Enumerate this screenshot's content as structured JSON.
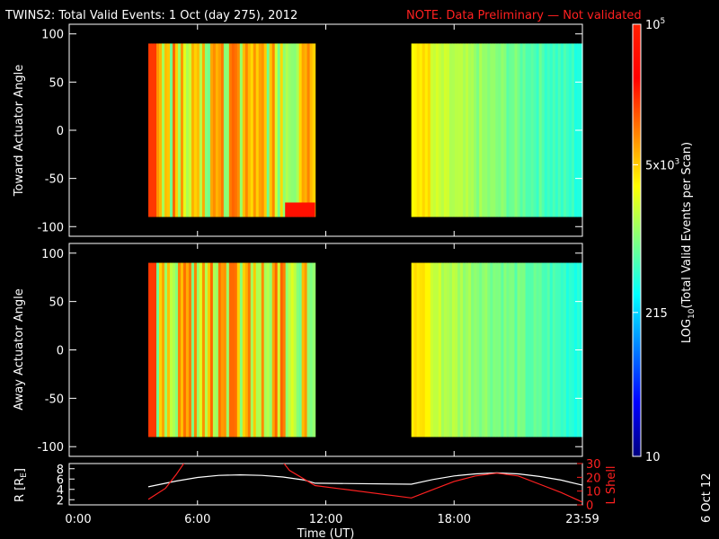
{
  "title": "TWINS2: Total Valid Events:  1 Oct (day 275), 2012",
  "note": "NOTE. Data Preliminary — Not validated",
  "side_stamp": "6 Oct 12",
  "colors": {
    "background": "#000000",
    "axes": "#ffffff",
    "note": "#ff2020",
    "l_shell": "#ff2020",
    "r_line": "#ffffff"
  },
  "chart_data": [
    {
      "type": "heatmap",
      "ylabel": "Toward Actuator Angle",
      "ylim": [
        -110,
        110
      ],
      "yticks": [
        100,
        50,
        0,
        -50,
        -100
      ],
      "xlim": [
        0,
        24
      ],
      "data_blocks": [
        {
          "x": [
            3.7,
            11.5
          ],
          "y": [
            -90,
            90
          ],
          "level": "orange-yellow"
        },
        {
          "x": [
            16.0,
            24.0
          ],
          "y": [
            -90,
            90
          ],
          "level": "green-cyan"
        }
      ]
    },
    {
      "type": "heatmap",
      "ylabel": "Away Actuator Angle",
      "ylim": [
        -110,
        110
      ],
      "yticks": [
        100,
        50,
        0,
        -50,
        -100
      ],
      "xlim": [
        0,
        24
      ],
      "data_blocks": [
        {
          "x": [
            3.7,
            11.5
          ],
          "y": [
            -90,
            90
          ],
          "level": "orange-yellow"
        },
        {
          "x": [
            16.0,
            24.0
          ],
          "y": [
            -90,
            90
          ],
          "level": "green-cyan"
        }
      ]
    },
    {
      "type": "line",
      "ylabel": "R [R",
      "ylabel_sub": "E",
      "ylabel_end": "]",
      "yticks": [
        8,
        6,
        4,
        2
      ],
      "ylim": [
        1,
        9
      ],
      "y2label": "L Shell",
      "y2ticks": [
        30,
        20,
        10,
        0
      ],
      "y2lim": [
        0,
        30
      ],
      "xlabel": "Time (UT)",
      "xticks": [
        "0:00",
        "6:00",
        "12:00",
        "18:00",
        "23:59"
      ],
      "xtick_values": [
        0,
        6,
        12,
        18,
        24
      ],
      "xlim": [
        0,
        24
      ],
      "series": [
        {
          "x": [
            3.7,
            5,
            6,
            7,
            8,
            9,
            10,
            11,
            11.5,
            16,
            17,
            18,
            19,
            20,
            21,
            22,
            23,
            24
          ],
          "y": [
            4.5,
            5.6,
            6.3,
            6.7,
            6.8,
            6.7,
            6.4,
            5.8,
            5.2,
            5.0,
            5.9,
            6.6,
            7.0,
            7.2,
            7.0,
            6.5,
            5.8,
            4.8
          ]
        },
        {
          "x": [
            3.7,
            4.5,
            5.0,
            5.4,
            10.0,
            10.3,
            11.5,
            16,
            17,
            18,
            19,
            20,
            21,
            22,
            23,
            24
          ],
          "y2": [
            4,
            12,
            22,
            31,
            31,
            25,
            14,
            5,
            11,
            17,
            21,
            23,
            21,
            15,
            9,
            2
          ]
        }
      ]
    }
  ],
  "colorbar": {
    "label_pre": "LOG",
    "label_sub": "10",
    "label_post": "(Total Valid  Events per Scan)",
    "ticks": [
      {
        "value": 5,
        "label_base": "10",
        "label_sup": "5"
      },
      {
        "value": 3.699,
        "label_base": "5x10",
        "label_sup": "3"
      },
      {
        "value": 2.332,
        "label_base": "215",
        "label_sup": ""
      },
      {
        "value": 1,
        "label_base": "10",
        "label_sup": ""
      }
    ],
    "range": [
      1,
      5
    ]
  }
}
